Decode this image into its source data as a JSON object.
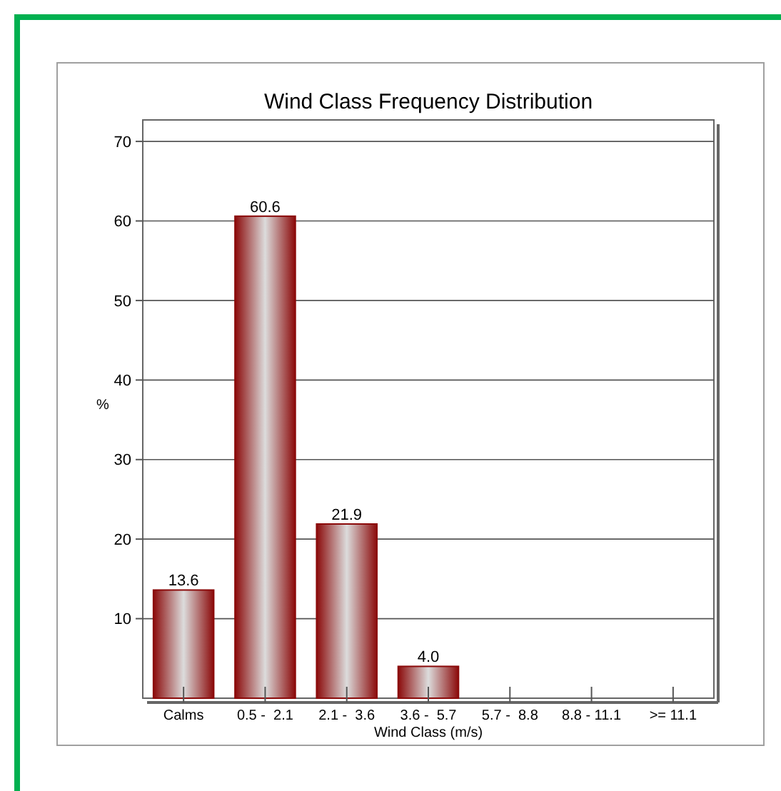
{
  "chart_data": {
    "type": "bar",
    "title": "Wind Class Frequency Distribution",
    "xlabel": "Wind Class (m/s)",
    "ylabel": "%",
    "categories": [
      "Calms",
      "0.5 -  2.1",
      "2.1 -  3.6",
      "3.6 -  5.7",
      "5.7 -  8.8",
      "8.8 - 11.1",
      ">= 11.1"
    ],
    "values": [
      13.6,
      60.6,
      21.9,
      4.0,
      0,
      0,
      0
    ],
    "value_labels": [
      "13.6",
      "60.6",
      "21.9",
      "4.0",
      null,
      null,
      null
    ],
    "color": "#8b0a0a",
    "ylim": [
      0,
      72.7
    ],
    "yticks": [
      10,
      20,
      30,
      40,
      50,
      60,
      70
    ],
    "grid": "y"
  }
}
